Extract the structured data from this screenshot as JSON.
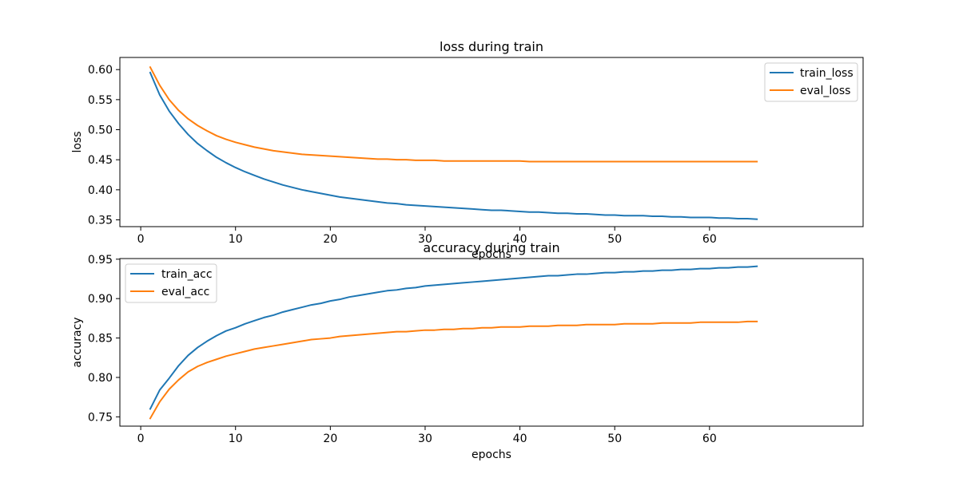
{
  "chart_data": [
    {
      "type": "line",
      "title": "loss during train",
      "xlabel": "epochs",
      "ylabel": "loss",
      "xlim": [
        -2.2,
        76.2
      ],
      "ylim": [
        0.3387,
        0.6202
      ],
      "x_ticks": [
        0,
        10,
        20,
        30,
        40,
        50,
        60
      ],
      "y_ticks": [
        0.35,
        0.4,
        0.45,
        0.5,
        0.55,
        0.6
      ],
      "y_tick_labels": [
        "0.35",
        "0.40",
        "0.45",
        "0.50",
        "0.55",
        "0.60"
      ],
      "grid": false,
      "legend_position": "upper right",
      "x": [
        1,
        2,
        3,
        4,
        5,
        6,
        7,
        8,
        9,
        10,
        11,
        12,
        13,
        14,
        15,
        16,
        17,
        18,
        19,
        20,
        21,
        22,
        23,
        24,
        25,
        26,
        27,
        28,
        29,
        30,
        31,
        32,
        33,
        34,
        35,
        36,
        37,
        38,
        39,
        40,
        41,
        42,
        43,
        44,
        45,
        46,
        47,
        48,
        49,
        50,
        51,
        52,
        53,
        54,
        55,
        56,
        57,
        58,
        59,
        60,
        61,
        62,
        63,
        64,
        65
      ],
      "series": [
        {
          "name": "train_loss",
          "color": "#1f77b4",
          "values": [
            0.595,
            0.558,
            0.531,
            0.51,
            0.492,
            0.477,
            0.465,
            0.454,
            0.445,
            0.437,
            0.43,
            0.424,
            0.418,
            0.413,
            0.408,
            0.404,
            0.4,
            0.397,
            0.394,
            0.391,
            0.388,
            0.386,
            0.384,
            0.382,
            0.38,
            0.378,
            0.377,
            0.375,
            0.374,
            0.373,
            0.372,
            0.371,
            0.37,
            0.369,
            0.368,
            0.367,
            0.366,
            0.366,
            0.365,
            0.364,
            0.363,
            0.363,
            0.362,
            0.361,
            0.361,
            0.36,
            0.36,
            0.359,
            0.358,
            0.358,
            0.357,
            0.357,
            0.357,
            0.356,
            0.356,
            0.355,
            0.355,
            0.354,
            0.354,
            0.354,
            0.353,
            0.353,
            0.352,
            0.352,
            0.351
          ]
        },
        {
          "name": "eval_loss",
          "color": "#ff7f0e",
          "values": [
            0.604,
            0.574,
            0.55,
            0.532,
            0.518,
            0.507,
            0.498,
            0.49,
            0.484,
            0.479,
            0.475,
            0.471,
            0.468,
            0.465,
            0.463,
            0.461,
            0.459,
            0.458,
            0.457,
            0.456,
            0.455,
            0.454,
            0.453,
            0.452,
            0.451,
            0.451,
            0.45,
            0.45,
            0.449,
            0.449,
            0.449,
            0.448,
            0.448,
            0.448,
            0.448,
            0.448,
            0.448,
            0.448,
            0.448,
            0.448,
            0.447,
            0.447,
            0.447,
            0.447,
            0.447,
            0.447,
            0.447,
            0.447,
            0.447,
            0.447,
            0.447,
            0.447,
            0.447,
            0.447,
            0.447,
            0.447,
            0.447,
            0.447,
            0.447,
            0.447,
            0.447,
            0.447,
            0.447,
            0.447,
            0.447
          ]
        }
      ]
    },
    {
      "type": "line",
      "title": "accuracy during train",
      "xlabel": "epochs",
      "ylabel": "accuracy",
      "xlim": [
        -2.2,
        76.2
      ],
      "ylim": [
        0.7382,
        0.9508
      ],
      "x_ticks": [
        0,
        10,
        20,
        30,
        40,
        50,
        60
      ],
      "y_ticks": [
        0.75,
        0.8,
        0.85,
        0.9,
        0.95
      ],
      "y_tick_labels": [
        "0.75",
        "0.80",
        "0.85",
        "0.90",
        "0.95"
      ],
      "grid": false,
      "legend_position": "upper left",
      "x": [
        1,
        2,
        3,
        4,
        5,
        6,
        7,
        8,
        9,
        10,
        11,
        12,
        13,
        14,
        15,
        16,
        17,
        18,
        19,
        20,
        21,
        22,
        23,
        24,
        25,
        26,
        27,
        28,
        29,
        30,
        31,
        32,
        33,
        34,
        35,
        36,
        37,
        38,
        39,
        40,
        41,
        42,
        43,
        44,
        45,
        46,
        47,
        48,
        49,
        50,
        51,
        52,
        53,
        54,
        55,
        56,
        57,
        58,
        59,
        60,
        61,
        62,
        63,
        64,
        65
      ],
      "series": [
        {
          "name": "train_acc",
          "color": "#1f77b4",
          "values": [
            0.76,
            0.784,
            0.799,
            0.815,
            0.828,
            0.838,
            0.846,
            0.853,
            0.859,
            0.863,
            0.868,
            0.872,
            0.876,
            0.879,
            0.883,
            0.886,
            0.889,
            0.892,
            0.894,
            0.897,
            0.899,
            0.902,
            0.904,
            0.906,
            0.908,
            0.91,
            0.911,
            0.913,
            0.914,
            0.916,
            0.917,
            0.918,
            0.919,
            0.92,
            0.921,
            0.922,
            0.923,
            0.924,
            0.925,
            0.926,
            0.927,
            0.928,
            0.929,
            0.929,
            0.93,
            0.931,
            0.931,
            0.932,
            0.933,
            0.933,
            0.934,
            0.934,
            0.935,
            0.935,
            0.936,
            0.936,
            0.937,
            0.937,
            0.938,
            0.938,
            0.939,
            0.939,
            0.94,
            0.94,
            0.941
          ]
        },
        {
          "name": "eval_acc",
          "color": "#ff7f0e",
          "values": [
            0.748,
            0.769,
            0.785,
            0.797,
            0.807,
            0.814,
            0.819,
            0.823,
            0.827,
            0.83,
            0.833,
            0.836,
            0.838,
            0.84,
            0.842,
            0.844,
            0.846,
            0.848,
            0.849,
            0.85,
            0.852,
            0.853,
            0.854,
            0.855,
            0.856,
            0.857,
            0.858,
            0.858,
            0.859,
            0.86,
            0.86,
            0.861,
            0.861,
            0.862,
            0.862,
            0.863,
            0.863,
            0.864,
            0.864,
            0.864,
            0.865,
            0.865,
            0.865,
            0.866,
            0.866,
            0.866,
            0.867,
            0.867,
            0.867,
            0.867,
            0.868,
            0.868,
            0.868,
            0.868,
            0.869,
            0.869,
            0.869,
            0.869,
            0.87,
            0.87,
            0.87,
            0.87,
            0.87,
            0.871,
            0.871
          ]
        }
      ]
    }
  ]
}
